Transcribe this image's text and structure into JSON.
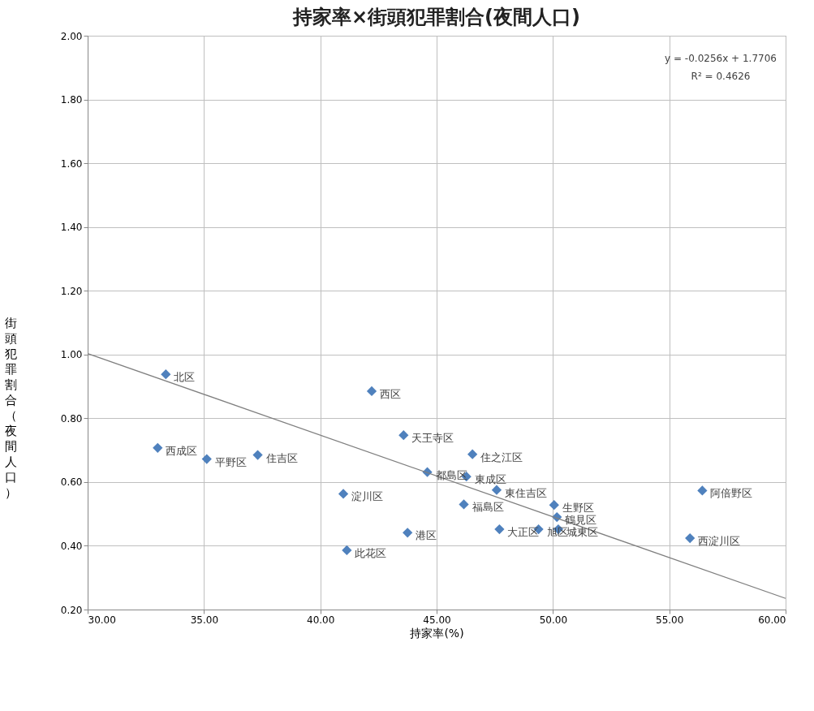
{
  "chart_data": {
    "type": "scatter",
    "title": "持家率×街頭犯罪割合(夜間人口)",
    "xlabel": "持家率(%)",
    "ylabel": "街頭犯罪割合（夜間人口）",
    "xlim": [
      30,
      60
    ],
    "xticks": [
      {
        "value": 30,
        "label": "30.00"
      },
      {
        "value": 35,
        "label": "35.00"
      },
      {
        "value": 40,
        "label": "40.00"
      },
      {
        "value": 45,
        "label": "45.00"
      },
      {
        "value": 50,
        "label": "50.00"
      },
      {
        "value": 55,
        "label": "55.00"
      },
      {
        "value": 60,
        "label": "60.00"
      }
    ],
    "ylim": [
      0.2,
      2.0
    ],
    "yticks": [
      {
        "value": 0.2,
        "label": "0.20"
      },
      {
        "value": 0.4,
        "label": "0.40"
      },
      {
        "value": 0.6,
        "label": "0.60"
      },
      {
        "value": 0.8,
        "label": "0.80"
      },
      {
        "value": 1.0,
        "label": "1.00"
      },
      {
        "value": 1.2,
        "label": "1.20"
      },
      {
        "value": 1.4,
        "label": "1.40"
      },
      {
        "value": 1.6,
        "label": "1.60"
      },
      {
        "value": 1.8,
        "label": "1.80"
      },
      {
        "value": 2.0,
        "label": "2.00"
      }
    ],
    "grid": true,
    "marker": "diamond",
    "series": [
      {
        "color": "#4f81bd",
        "x": [
          33.36,
          33.01,
          35.12,
          37.31,
          42.21,
          43.58,
          46.54,
          44.6,
          46.28,
          47.58,
          40.99,
          46.17,
          50.05,
          50.17,
          47.7,
          49.38,
          50.23,
          43.75,
          41.14,
          56.42,
          55.89
        ],
        "values": [
          0.938,
          0.707,
          0.672,
          0.685,
          0.885,
          0.747,
          0.687,
          0.631,
          0.617,
          0.575,
          0.563,
          0.53,
          0.528,
          0.49,
          0.452,
          0.452,
          0.452,
          0.441,
          0.386,
          0.573,
          0.424
        ]
      },
      {
        "type": "line",
        "marker": "none",
        "color": "#7f7f7f",
        "x": [
          30,
          60
        ],
        "values": [
          1.003,
          0.235
        ]
      }
    ],
    "annotations": [
      {
        "text": "北区",
        "x": 33.36,
        "y": 0.938
      },
      {
        "text": "西成区",
        "x": 33.01,
        "y": 0.707
      },
      {
        "text": "平野区",
        "x": 35.12,
        "y": 0.672
      },
      {
        "text": "住吉区",
        "x": 37.31,
        "y": 0.685
      },
      {
        "text": "西区",
        "x": 42.21,
        "y": 0.885
      },
      {
        "text": "天王寺区",
        "x": 43.58,
        "y": 0.747
      },
      {
        "text": "住之江区",
        "x": 46.54,
        "y": 0.687
      },
      {
        "text": "都島区",
        "x": 44.6,
        "y": 0.631
      },
      {
        "text": "東成区",
        "x": 46.28,
        "y": 0.617
      },
      {
        "text": "東住吉区",
        "x": 47.58,
        "y": 0.575
      },
      {
        "text": "淀川区",
        "x": 40.99,
        "y": 0.563
      },
      {
        "text": "福島区",
        "x": 46.17,
        "y": 0.53
      },
      {
        "text": "生野区",
        "x": 50.05,
        "y": 0.528
      },
      {
        "text": "鶴見区",
        "x": 50.17,
        "y": 0.49
      },
      {
        "text": "大正区",
        "x": 47.7,
        "y": 0.452
      },
      {
        "text": "旭区",
        "x": 49.38,
        "y": 0.452
      },
      {
        "text": "城東区",
        "x": 50.23,
        "y": 0.452
      },
      {
        "text": "港区",
        "x": 43.75,
        "y": 0.441
      },
      {
        "text": "此花区",
        "x": 41.14,
        "y": 0.386
      },
      {
        "text": "阿倍野区",
        "x": 56.42,
        "y": 0.573
      },
      {
        "text": "西淀川区",
        "x": 55.89,
        "y": 0.424
      },
      "y = -0.0256x + 1.7706",
      "R² = 0.4626"
    ]
  }
}
